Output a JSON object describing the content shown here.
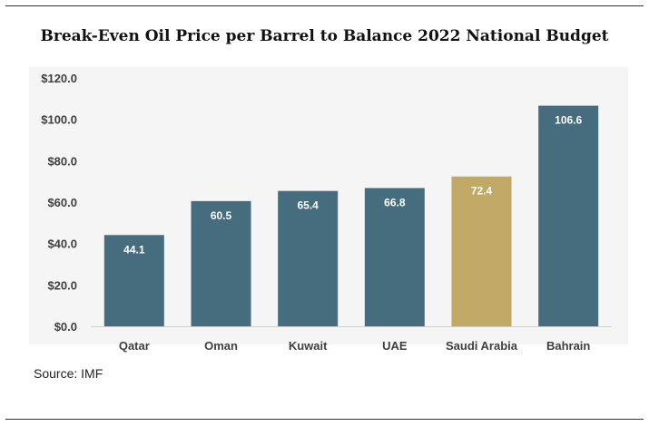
{
  "title": "Break-Even Oil Price per Barrel to Balance 2022 National Budget",
  "source": "Source: IMF",
  "chart_data": {
    "type": "bar",
    "title": "Break-Even Oil Price per Barrel to Balance 2022 National Budget",
    "xlabel": "",
    "ylabel": "",
    "categories": [
      "Qatar",
      "Oman",
      "Kuwait",
      "UAE",
      "Saudi Arabia",
      "Bahrain"
    ],
    "values": [
      44.1,
      60.5,
      65.4,
      66.8,
      72.4,
      106.6
    ],
    "value_labels": [
      "44.1",
      "60.5",
      "65.4",
      "66.8",
      "72.4",
      "106.6"
    ],
    "highlight": "Saudi Arabia",
    "ylim": [
      0,
      120
    ],
    "yticks": [
      0,
      20,
      40,
      60,
      80,
      100,
      120
    ],
    "ytick_labels": [
      "$0.0",
      "$20.0",
      "$40.0",
      "$60.0",
      "$80.0",
      "$100.0",
      "$120.0"
    ],
    "grid": false,
    "legend": "none",
    "colors": {
      "bar": "#466d7e",
      "highlight": "#bfa964",
      "label": "#ffffff",
      "axis_text": "#404040",
      "baseline": "#d0d0d0"
    }
  }
}
